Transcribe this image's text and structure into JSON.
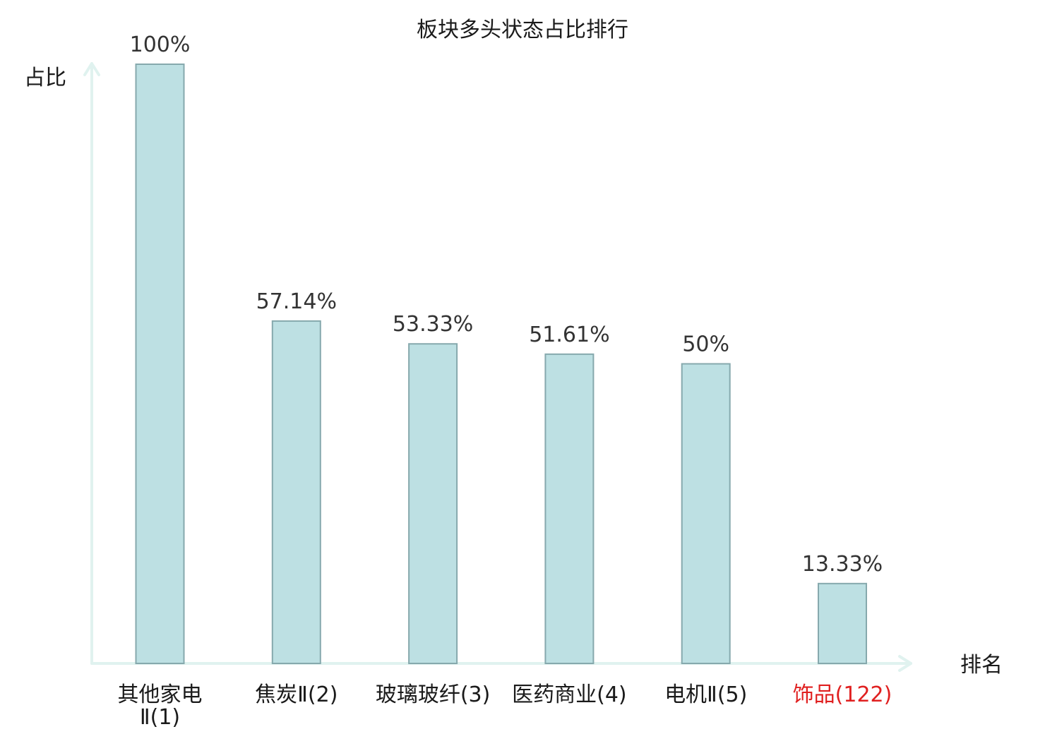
{
  "chart_data": {
    "type": "bar",
    "title": "板块多头状态占比排行",
    "ylabel": "占比",
    "xlabel": "排名",
    "ylim": [
      0,
      100
    ],
    "categories": [
      {
        "name": "其他家电Ⅱ",
        "rank": "(1)",
        "lines": [
          "其他家电",
          "Ⅱ(1)"
        ],
        "highlight": false
      },
      {
        "name": "焦炭Ⅱ",
        "rank": "(2)",
        "lines": [
          "焦炭Ⅱ(2)"
        ],
        "highlight": false
      },
      {
        "name": "玻璃玻纤",
        "rank": "(3)",
        "lines": [
          "玻璃玻纤(3)"
        ],
        "highlight": false
      },
      {
        "name": "医药商业",
        "rank": "(4)",
        "lines": [
          "医药商业(4)"
        ],
        "highlight": false
      },
      {
        "name": "电机Ⅱ",
        "rank": "(5)",
        "lines": [
          "电机Ⅱ(5)"
        ],
        "highlight": false
      },
      {
        "name": "饰品",
        "rank": "(122)",
        "lines": [
          "饰品(122)"
        ],
        "highlight": true
      }
    ],
    "values": [
      100,
      57.14,
      53.33,
      51.61,
      50,
      13.33
    ],
    "value_labels": [
      "100%",
      "57.14%",
      "53.33%",
      "51.61%",
      "50%",
      "13.33%"
    ],
    "grid": false,
    "legend": "none",
    "colors": {
      "bar_fill": "#bde0e3",
      "bar_stroke": "#86a9ad",
      "axis": "#e0f2ef",
      "highlight_text": "#e02020",
      "normal_text": "#1a1a1a"
    }
  }
}
